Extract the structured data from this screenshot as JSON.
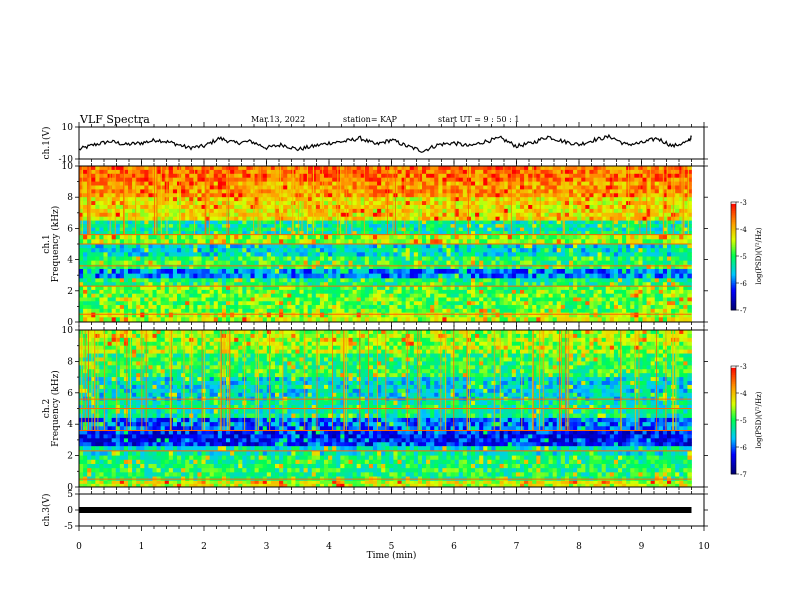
{
  "header": {
    "title": "VLF Spectra",
    "date": "Mar.13, 2022",
    "station_label": "station= KAP",
    "start_label": "start  UT  =   9  : 50 : 1"
  },
  "colorbar": {
    "label": "log(PSD)(V²/Hz)",
    "ticks": [
      "-3",
      "-4",
      "-5",
      "-6",
      "-7"
    ],
    "colors": [
      "#ffffff",
      "#ff0000",
      "#ffff00",
      "#00ff00",
      "#00ffff",
      "#0000ff",
      "#000080"
    ]
  },
  "chart_data": [
    {
      "type": "line",
      "panel": "ch1-waveform",
      "ylabel": "ch.1(V)",
      "ylim": [
        -10,
        10
      ],
      "yticks": [
        "10",
        "-10"
      ],
      "xlim": [
        0,
        10
      ],
      "series": [
        {
          "x": [
            0,
            0.25,
            0.5,
            0.75,
            1,
            1.25,
            1.5,
            1.75,
            2,
            2.25,
            2.5,
            2.75,
            3,
            3.25,
            3.5,
            3.75,
            4,
            4.25,
            4.5,
            4.75,
            5,
            5.25,
            5.5,
            5.75,
            6,
            6.25,
            6.5,
            6.75,
            7,
            7.25,
            7.5,
            7.75,
            8,
            8.25,
            8.5,
            8.75,
            9,
            9.25,
            9.5,
            9.75,
            9.8
          ],
          "y": [
            -4,
            -1,
            1,
            -1,
            0,
            2,
            0,
            -3,
            -2,
            3,
            0,
            1,
            -3,
            -1,
            -4,
            -2,
            0,
            1,
            3,
            -1,
            2,
            -2,
            -5,
            -1,
            0,
            -2,
            1,
            3,
            -2,
            0,
            4,
            1,
            -1,
            2,
            4,
            -1,
            0,
            3,
            -2,
            1,
            4
          ]
        }
      ]
    },
    {
      "type": "heatmap",
      "panel": "ch1-spectrogram",
      "ylabel": "ch.1\nFrequency  (kHz)",
      "ylim": [
        0,
        10
      ],
      "yticks": [
        "0",
        "2",
        "4",
        "6",
        "8",
        "10"
      ],
      "xlim": [
        0,
        10
      ],
      "bands_khz": [
        {
          "from": 9.0,
          "to": 10.0,
          "level": -3.6
        },
        {
          "from": 8.0,
          "to": 9.0,
          "level": -3.8
        },
        {
          "from": 6.5,
          "to": 8.0,
          "level": -4.2
        },
        {
          "from": 5.6,
          "to": 6.5,
          "level": -5.3
        },
        {
          "from": 5.0,
          "to": 5.6,
          "level": -4.6
        },
        {
          "from": 4.2,
          "to": 5.0,
          "level": -5.5
        },
        {
          "from": 3.4,
          "to": 4.2,
          "level": -5.0
        },
        {
          "from": 2.8,
          "to": 3.4,
          "level": -5.9
        },
        {
          "from": 2.3,
          "to": 2.8,
          "level": -5.1
        },
        {
          "from": 0.6,
          "to": 2.3,
          "level": -4.8
        },
        {
          "from": 0.0,
          "to": 0.6,
          "level": -4.5
        }
      ]
    },
    {
      "type": "heatmap",
      "panel": "ch2-spectrogram",
      "ylabel": "ch.2\nFrequency  (kHz)",
      "ylim": [
        0,
        10
      ],
      "yticks": [
        "0",
        "2",
        "4",
        "6",
        "8",
        "10"
      ],
      "xlim": [
        0,
        10
      ],
      "bands_khz": [
        {
          "from": 8.5,
          "to": 10.0,
          "level": -4.6
        },
        {
          "from": 7.0,
          "to": 8.5,
          "level": -5.0
        },
        {
          "from": 5.5,
          "to": 7.0,
          "level": -5.5
        },
        {
          "from": 4.4,
          "to": 5.5,
          "level": -5.3
        },
        {
          "from": 3.6,
          "to": 4.4,
          "level": -6.0
        },
        {
          "from": 2.6,
          "to": 3.6,
          "level": -6.3
        },
        {
          "from": 2.0,
          "to": 2.6,
          "level": -5.4
        },
        {
          "from": 0.4,
          "to": 2.0,
          "level": -5.1
        },
        {
          "from": 0.0,
          "to": 0.4,
          "level": -4.4
        }
      ]
    },
    {
      "type": "line",
      "panel": "ch3-waveform",
      "ylabel": "ch.3(V)",
      "ylim": [
        -5,
        5
      ],
      "yticks": [
        "5",
        "0",
        "-5"
      ],
      "xlim": [
        0,
        10
      ],
      "series": [
        {
          "x": [
            0,
            9.8
          ],
          "y": [
            0,
            0
          ]
        }
      ]
    }
  ],
  "xaxis": {
    "label": "Time  (min)",
    "ticks": [
      "0",
      "1",
      "2",
      "3",
      "4",
      "5",
      "6",
      "7",
      "8",
      "9",
      "10"
    ]
  }
}
